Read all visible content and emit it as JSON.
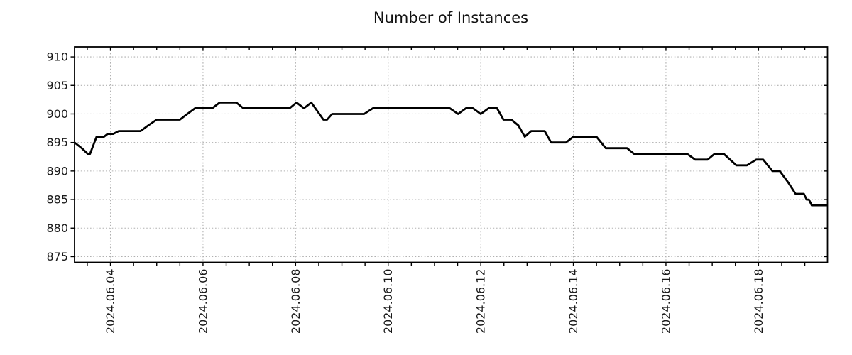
{
  "page": {
    "background_color": "#ffffff",
    "text_color": "#1a1a1a"
  },
  "chart_data": {
    "type": "line",
    "title": "Number of Instances",
    "xlabel": "",
    "ylabel": "",
    "legend": "none",
    "grid": "dotted gray lines at labeled ticks, on",
    "line_color": "#000000",
    "grid_color": "#b0b0b0",
    "axis_color": "#000000",
    "x_unit": "date, June 2024 (day-of-month, fractional)",
    "xlim": [
      3.225,
      19.49
    ],
    "ylim": [
      874.0,
      911.75
    ],
    "x_major_ticks": [
      {
        "day": 4,
        "label": "2024.06.04"
      },
      {
        "day": 6,
        "label": "2024.06.06"
      },
      {
        "day": 8,
        "label": "2024.06.08"
      },
      {
        "day": 10,
        "label": "2024.06.10"
      },
      {
        "day": 12,
        "label": "2024.06.12"
      },
      {
        "day": 14,
        "label": "2024.06.14"
      },
      {
        "day": 16,
        "label": "2024.06.16"
      },
      {
        "day": 18,
        "label": "2024.06.18"
      }
    ],
    "x_minor_tick_step_days": 0.5,
    "y_ticks": [
      875,
      880,
      885,
      890,
      895,
      900,
      905,
      910
    ],
    "points": [
      [
        3.225,
        895
      ],
      [
        3.38,
        894
      ],
      [
        3.51,
        893
      ],
      [
        3.56,
        893
      ],
      [
        3.7,
        896
      ],
      [
        3.86,
        896
      ],
      [
        3.94,
        896.5
      ],
      [
        4.06,
        896.5
      ],
      [
        4.18,
        897
      ],
      [
        4.65,
        897
      ],
      [
        4.82,
        898
      ],
      [
        5.0,
        899
      ],
      [
        5.5,
        899
      ],
      [
        5.66,
        900
      ],
      [
        5.83,
        901
      ],
      [
        6.2,
        901
      ],
      [
        6.36,
        902
      ],
      [
        6.72,
        902
      ],
      [
        6.87,
        901
      ],
      [
        7.87,
        901
      ],
      [
        8.02,
        902
      ],
      [
        8.18,
        901
      ],
      [
        8.34,
        902
      ],
      [
        8.6,
        899
      ],
      [
        8.68,
        899
      ],
      [
        8.79,
        900
      ],
      [
        9.48,
        900
      ],
      [
        9.67,
        901
      ],
      [
        11.33,
        901
      ],
      [
        11.51,
        900
      ],
      [
        11.68,
        901
      ],
      [
        11.83,
        901
      ],
      [
        12.0,
        900
      ],
      [
        12.17,
        901
      ],
      [
        12.35,
        901
      ],
      [
        12.49,
        899
      ],
      [
        12.66,
        899
      ],
      [
        12.81,
        898
      ],
      [
        12.95,
        896
      ],
      [
        13.09,
        897
      ],
      [
        13.38,
        897
      ],
      [
        13.52,
        895
      ],
      [
        13.84,
        895
      ],
      [
        14.0,
        896
      ],
      [
        14.5,
        896
      ],
      [
        14.7,
        894
      ],
      [
        15.16,
        894
      ],
      [
        15.31,
        893
      ],
      [
        16.46,
        893
      ],
      [
        16.63,
        892
      ],
      [
        16.9,
        892
      ],
      [
        17.05,
        893
      ],
      [
        17.25,
        893
      ],
      [
        17.52,
        891
      ],
      [
        17.75,
        891
      ],
      [
        17.95,
        892
      ],
      [
        18.1,
        892
      ],
      [
        18.3,
        890
      ],
      [
        18.46,
        890
      ],
      [
        18.64,
        888
      ],
      [
        18.8,
        886
      ],
      [
        18.98,
        886
      ],
      [
        19.04,
        885
      ],
      [
        19.09,
        885
      ],
      [
        19.15,
        884
      ],
      [
        19.49,
        884
      ]
    ]
  }
}
